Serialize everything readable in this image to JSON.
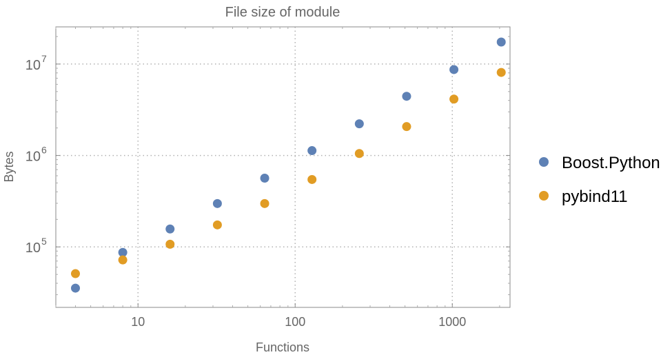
{
  "chart_data": {
    "type": "scatter",
    "title": "File size of module",
    "xlabel": "Functions",
    "ylabel": "Bytes",
    "xscale": "log",
    "yscale": "log",
    "xlim": [
      3.0,
      2330
    ],
    "ylim": [
      21800,
      25500000
    ],
    "grid": true,
    "legend": "right",
    "x_ticks": [
      {
        "value": 10,
        "label": "10"
      },
      {
        "value": 100,
        "label": "100"
      },
      {
        "value": 1000,
        "label": "1000"
      }
    ],
    "y_ticks": [
      {
        "value": 100000,
        "base": "10",
        "exp": "5"
      },
      {
        "value": 1000000,
        "base": "10",
        "exp": "6"
      },
      {
        "value": 10000000,
        "base": "10",
        "exp": "7"
      }
    ],
    "x": [
      4,
      8,
      16,
      32,
      64,
      128,
      256,
      512,
      1024,
      2048
    ],
    "series": [
      {
        "name": "Boost.Python",
        "color": "#5e81b5",
        "values": [
          35400,
          87000,
          157000,
          298000,
          565000,
          1130000,
          2220000,
          4440000,
          8700000,
          17400000
        ]
      },
      {
        "name": "pybind11",
        "color": "#e19c24",
        "values": [
          51000,
          72000,
          107000,
          174000,
          298000,
          546000,
          1050000,
          2070000,
          4140000,
          8100000
        ]
      }
    ]
  }
}
